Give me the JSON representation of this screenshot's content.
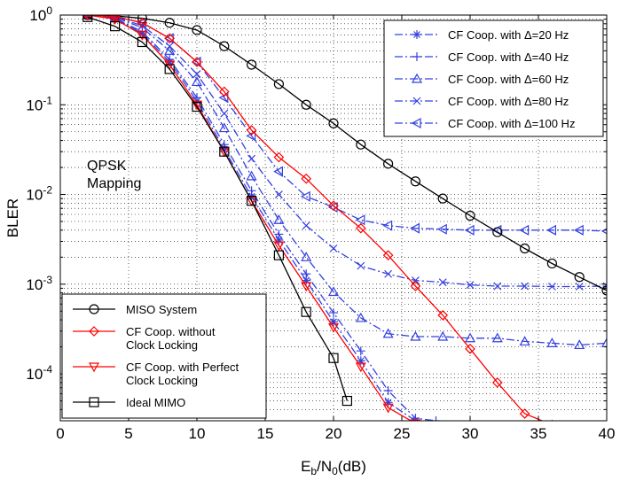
{
  "chart_data": {
    "type": "line",
    "title": "",
    "xlabel": {
      "main": "E",
      "sub": "b",
      "mid": "/N",
      "sub2": "0",
      "tail": "(dB)"
    },
    "ylabel": "BLER",
    "xlim": [
      0,
      40
    ],
    "ylim": [
      3e-05,
      1
    ],
    "yscale": "log",
    "grid": true,
    "x_ticks": [
      "0",
      "5",
      "10",
      "15",
      "20",
      "25",
      "30",
      "35",
      "40"
    ],
    "y_ticks": [
      {
        "base": "10",
        "exp": "0"
      },
      {
        "base": "10",
        "exp": "-1"
      },
      {
        "base": "10",
        "exp": "-2"
      },
      {
        "base": "10",
        "exp": "-3"
      },
      {
        "base": "10",
        "exp": "-4"
      }
    ],
    "annotation": [
      "QPSK",
      "Mapping"
    ],
    "series": [
      {
        "name": "MISO System",
        "color": "#000000",
        "dash": "solid",
        "marker": "circle",
        "x": [
          2,
          4,
          6,
          8,
          10,
          12,
          14,
          16,
          18,
          20,
          22,
          24,
          26,
          28,
          30,
          32,
          34,
          36,
          38,
          40
        ],
        "y": [
          1.0,
          0.98,
          0.92,
          0.82,
          0.68,
          0.45,
          0.28,
          0.17,
          0.1,
          0.062,
          0.036,
          0.022,
          0.014,
          0.009,
          0.0058,
          0.0038,
          0.0025,
          0.0017,
          0.0012,
          0.00085
        ]
      },
      {
        "name": "CF Coop. without Clock Locking",
        "color": "#ff0000",
        "dash": "solid",
        "marker": "diamond",
        "x": [
          2,
          4,
          6,
          8,
          10,
          12,
          14,
          16,
          18,
          20,
          22,
          24,
          26,
          28,
          30,
          32,
          34,
          36
        ],
        "y": [
          1.0,
          0.96,
          0.82,
          0.55,
          0.3,
          0.14,
          0.052,
          0.026,
          0.015,
          0.0075,
          0.0042,
          0.0021,
          0.00095,
          0.00045,
          0.00019,
          8e-05,
          3.6e-05,
          2.7e-05
        ]
      },
      {
        "name": "CF Coop. with Perfect Clock Locking",
        "color": "#ff0000",
        "dash": "solid",
        "marker": "triangle-down",
        "x": [
          2,
          4,
          6,
          8,
          10,
          12,
          14,
          16,
          18,
          20,
          22,
          24,
          26,
          27
        ],
        "y": [
          1.0,
          0.9,
          0.6,
          0.28,
          0.1,
          0.03,
          0.0085,
          0.0027,
          0.00095,
          0.00033,
          0.00012,
          4.2e-05,
          2.8e-05,
          2e-05
        ]
      },
      {
        "name": "Ideal MIMO",
        "color": "#000000",
        "dash": "solid",
        "marker": "square",
        "x": [
          2,
          4,
          6,
          8,
          10,
          12,
          14,
          16,
          18,
          20,
          21
        ],
        "y": [
          0.95,
          0.75,
          0.5,
          0.25,
          0.095,
          0.03,
          0.0085,
          0.0021,
          0.00049,
          0.00015,
          5e-05
        ]
      },
      {
        "name": "CF Coop. with Δ=20 Hz",
        "color": "#3340e0",
        "dash": "dashdot",
        "marker": "asterisk",
        "x": [
          2,
          4,
          6,
          8,
          10,
          12,
          14,
          16,
          18,
          20,
          22,
          24,
          26,
          27,
          28
        ],
        "y": [
          1.0,
          0.92,
          0.62,
          0.3,
          0.11,
          0.032,
          0.0095,
          0.0031,
          0.0011,
          0.00038,
          0.00014,
          4.8e-05,
          3e-05,
          2.2e-05,
          1.8e-05
        ]
      },
      {
        "name": "CF Coop. with Δ=40 Hz",
        "color": "#3340e0",
        "dash": "dashdot",
        "marker": "plus",
        "x": [
          2,
          4,
          6,
          8,
          10,
          12,
          14,
          16,
          18,
          20,
          22,
          24,
          26,
          27.5
        ],
        "y": [
          1.0,
          0.93,
          0.65,
          0.32,
          0.12,
          0.036,
          0.011,
          0.0036,
          0.0013,
          0.00048,
          0.00018,
          6.5e-05,
          3.2e-05,
          3e-05
        ]
      },
      {
        "name": "CF Coop. with Δ=60 Hz",
        "color": "#3340e0",
        "dash": "dashdot",
        "marker": "triangle-up",
        "x": [
          2,
          4,
          6,
          8,
          10,
          12,
          14,
          16,
          18,
          20,
          22,
          24,
          26,
          28,
          30,
          32,
          34,
          36,
          38,
          40
        ],
        "y": [
          1.0,
          0.95,
          0.72,
          0.4,
          0.18,
          0.055,
          0.016,
          0.0052,
          0.002,
          0.00082,
          0.00042,
          0.00028,
          0.00026,
          0.00026,
          0.00025,
          0.00025,
          0.00023,
          0.00022,
          0.00021,
          0.00022
        ]
      },
      {
        "name": "CF Coop. with Δ=80 Hz",
        "color": "#3340e0",
        "dash": "dashdot",
        "marker": "cross",
        "x": [
          2,
          4,
          6,
          8,
          10,
          12,
          14,
          16,
          18,
          20,
          22,
          24,
          26,
          28,
          30,
          32,
          34,
          36,
          38,
          40
        ],
        "y": [
          1.0,
          0.96,
          0.76,
          0.45,
          0.22,
          0.08,
          0.025,
          0.01,
          0.0045,
          0.0025,
          0.0016,
          0.0013,
          0.0011,
          0.00105,
          0.00098,
          0.00095,
          0.00095,
          0.00094,
          0.00094,
          0.00095
        ]
      },
      {
        "name": "CF Coop. with Δ=100 Hz",
        "color": "#3340e0",
        "dash": "dashdot",
        "marker": "triangle-left",
        "x": [
          2,
          4,
          6,
          8,
          10,
          12,
          14,
          16,
          18,
          20,
          22,
          24,
          26,
          28,
          30,
          32,
          34,
          36,
          38,
          40
        ],
        "y": [
          1.0,
          0.97,
          0.82,
          0.55,
          0.3,
          0.12,
          0.045,
          0.018,
          0.0095,
          0.0072,
          0.0052,
          0.0045,
          0.0042,
          0.0041,
          0.004,
          0.004,
          0.004,
          0.004,
          0.004,
          0.0039
        ]
      }
    ],
    "legend_top_right": [
      {
        "series": 4,
        "label": "CF Coop. with Δ=20 Hz"
      },
      {
        "series": 5,
        "label": "CF Coop. with Δ=40 Hz"
      },
      {
        "series": 6,
        "label": "CF Coop. with Δ=60 Hz"
      },
      {
        "series": 7,
        "label": "CF Coop. with Δ=80 Hz"
      },
      {
        "series": 8,
        "label": "CF Coop. with Δ=100 Hz"
      }
    ],
    "legend_bottom_left": [
      {
        "series": 0,
        "lines": [
          "MISO System"
        ]
      },
      {
        "series": 1,
        "lines": [
          "CF Coop. without",
          "Clock Locking"
        ]
      },
      {
        "series": 2,
        "lines": [
          "CF Coop. with Perfect",
          "Clock Locking"
        ]
      },
      {
        "series": 3,
        "lines": [
          "Ideal MIMO"
        ]
      }
    ]
  }
}
